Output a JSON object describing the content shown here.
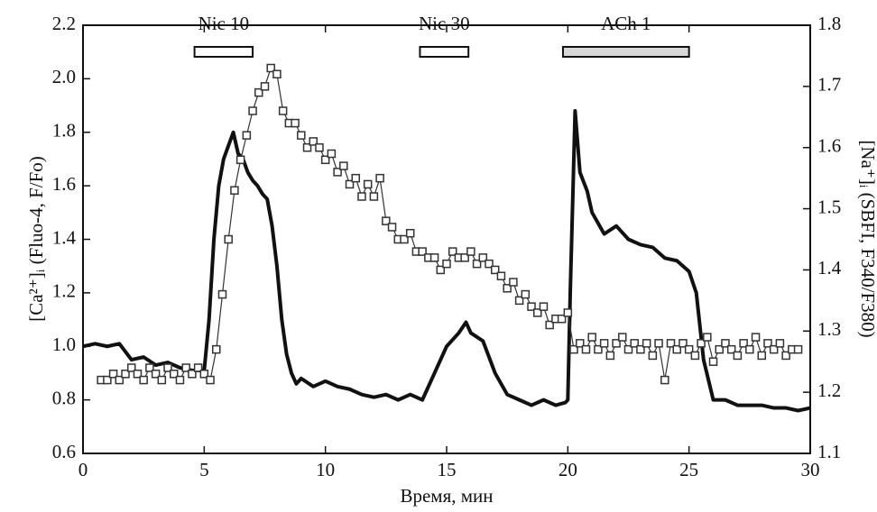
{
  "chart_data": {
    "type": "line",
    "xlabel": "Время, мин",
    "ylabel": "[Ca²⁺]ᵢ (Fluo-4, F/Fo)",
    "y2label": "[Na⁺]ᵢ (SBFI, F340/F380)",
    "xlim": [
      0,
      30
    ],
    "xticks": [
      0,
      5,
      10,
      15,
      20,
      25,
      30
    ],
    "ylim": [
      0.6,
      2.2
    ],
    "yticks": [
      0.6,
      0.8,
      {
        "value": 1,
        "label": "1.0"
      },
      1.2,
      1.4,
      1.6,
      1.8,
      {
        "value": 2,
        "label": "2.0"
      },
      2.2
    ],
    "y2lim": [
      1.1,
      1.8
    ],
    "y2ticks": [
      1.1,
      1.2,
      1.3,
      1.4,
      1.5,
      1.6,
      1.7,
      1.8
    ],
    "stimuli": [
      {
        "label": "Nic 10",
        "start": 4.6,
        "end": 7.0,
        "color": "#ffffff"
      },
      {
        "label": "Nic 30",
        "start": 13.9,
        "end": 15.9,
        "color": "#ffffff"
      },
      {
        "label": "ACh 1",
        "start": 19.8,
        "end": 25.0,
        "color": "#d8d8d8"
      }
    ],
    "series": [
      {
        "color": "#111111",
        "marker": "none",
        "axis": "y",
        "x": [
          0,
          0.5,
          1,
          1.5,
          2,
          2.5,
          3,
          3.5,
          4,
          4.5,
          5,
          5.2,
          5.4,
          5.6,
          5.8,
          6.0,
          6.2,
          6.4,
          6.6,
          6.8,
          7.0,
          7.2,
          7.4,
          7.6,
          7.8,
          8.0,
          8.2,
          8.4,
          8.6,
          8.8,
          9.0,
          9.5,
          10,
          10.5,
          11,
          11.5,
          12,
          12.5,
          13,
          13.5,
          14,
          14.2,
          14.5,
          15,
          15.5,
          15.8,
          16,
          16.5,
          17,
          17.5,
          18,
          18.5,
          19,
          19.5,
          19.9,
          20.0,
          20.1,
          20.3,
          20.5,
          20.8,
          21,
          21.5,
          22,
          22.5,
          23,
          23.5,
          24,
          24.5,
          25,
          25.3,
          25.6,
          26,
          26.5,
          27,
          27.5,
          28,
          28.5,
          29,
          29.5,
          30
        ],
        "values": [
          1.0,
          1.01,
          1.0,
          1.01,
          0.95,
          0.96,
          0.93,
          0.94,
          0.92,
          0.91,
          0.91,
          1.1,
          1.4,
          1.6,
          1.7,
          1.75,
          1.8,
          1.72,
          1.7,
          1.65,
          1.62,
          1.6,
          1.57,
          1.55,
          1.45,
          1.3,
          1.1,
          0.97,
          0.9,
          0.86,
          0.88,
          0.85,
          0.87,
          0.85,
          0.84,
          0.82,
          0.81,
          0.82,
          0.8,
          0.82,
          0.8,
          0.84,
          0.9,
          1.0,
          1.05,
          1.09,
          1.05,
          1.02,
          0.9,
          0.82,
          0.8,
          0.78,
          0.8,
          0.78,
          0.79,
          0.8,
          1.2,
          1.88,
          1.65,
          1.58,
          1.5,
          1.42,
          1.45,
          1.4,
          1.38,
          1.37,
          1.33,
          1.32,
          1.28,
          1.2,
          0.95,
          0.8,
          0.8,
          0.78,
          0.78,
          0.78,
          0.77,
          0.77,
          0.76,
          0.77
        ]
      },
      {
        "color": "#333333",
        "marker": "square",
        "axis": "y2",
        "x": [
          0.75,
          1,
          1.25,
          1.5,
          1.75,
          2,
          2.25,
          2.5,
          2.75,
          3,
          3.25,
          3.5,
          3.75,
          4,
          4.25,
          4.5,
          4.75,
          5,
          5.25,
          5.5,
          5.75,
          6,
          6.25,
          6.5,
          6.75,
          7,
          7.25,
          7.5,
          7.75,
          8,
          8.25,
          8.5,
          8.75,
          9,
          9.25,
          9.5,
          9.75,
          10,
          10.25,
          10.5,
          10.75,
          11,
          11.25,
          11.5,
          11.75,
          12,
          12.25,
          12.5,
          12.75,
          13,
          13.25,
          13.5,
          13.75,
          14,
          14.25,
          14.5,
          14.75,
          15,
          15.25,
          15.5,
          15.75,
          16,
          16.25,
          16.5,
          16.75,
          17,
          17.25,
          17.5,
          17.75,
          18,
          18.25,
          18.5,
          18.75,
          19,
          19.25,
          19.5,
          19.75,
          20,
          20.25,
          20.5,
          20.75,
          21,
          21.25,
          21.5,
          21.75,
          22,
          22.25,
          22.5,
          22.75,
          23,
          23.25,
          23.5,
          23.75,
          24,
          24.25,
          24.5,
          24.75,
          25,
          25.25,
          25.5,
          25.75,
          26,
          26.25,
          26.5,
          26.75,
          27,
          27.25,
          27.5,
          27.75,
          28,
          28.25,
          28.5,
          28.75,
          29,
          29.25,
          29.5
        ],
        "values": [
          1.22,
          1.22,
          1.23,
          1.22,
          1.23,
          1.24,
          1.23,
          1.22,
          1.24,
          1.23,
          1.22,
          1.24,
          1.23,
          1.22,
          1.24,
          1.23,
          1.24,
          1.23,
          1.22,
          1.27,
          1.36,
          1.45,
          1.53,
          1.58,
          1.62,
          1.66,
          1.69,
          1.7,
          1.73,
          1.72,
          1.66,
          1.64,
          1.64,
          1.62,
          1.6,
          1.61,
          1.6,
          1.58,
          1.59,
          1.56,
          1.57,
          1.54,
          1.55,
          1.52,
          1.54,
          1.52,
          1.55,
          1.48,
          1.47,
          1.45,
          1.45,
          1.46,
          1.43,
          1.43,
          1.42,
          1.42,
          1.4,
          1.41,
          1.43,
          1.42,
          1.42,
          1.43,
          1.41,
          1.42,
          1.41,
          1.4,
          1.39,
          1.37,
          1.38,
          1.35,
          1.36,
          1.34,
          1.33,
          1.34,
          1.31,
          1.32,
          1.32,
          1.33,
          1.27,
          1.28,
          1.27,
          1.29,
          1.27,
          1.28,
          1.26,
          1.28,
          1.29,
          1.27,
          1.28,
          1.27,
          1.28,
          1.26,
          1.28,
          1.22,
          1.28,
          1.27,
          1.28,
          1.27,
          1.26,
          1.28,
          1.29,
          1.25,
          1.27,
          1.28,
          1.27,
          1.26,
          1.28,
          1.27,
          1.29,
          1.26,
          1.28,
          1.27,
          1.28,
          1.26,
          1.27,
          1.27
        ]
      }
    ]
  }
}
